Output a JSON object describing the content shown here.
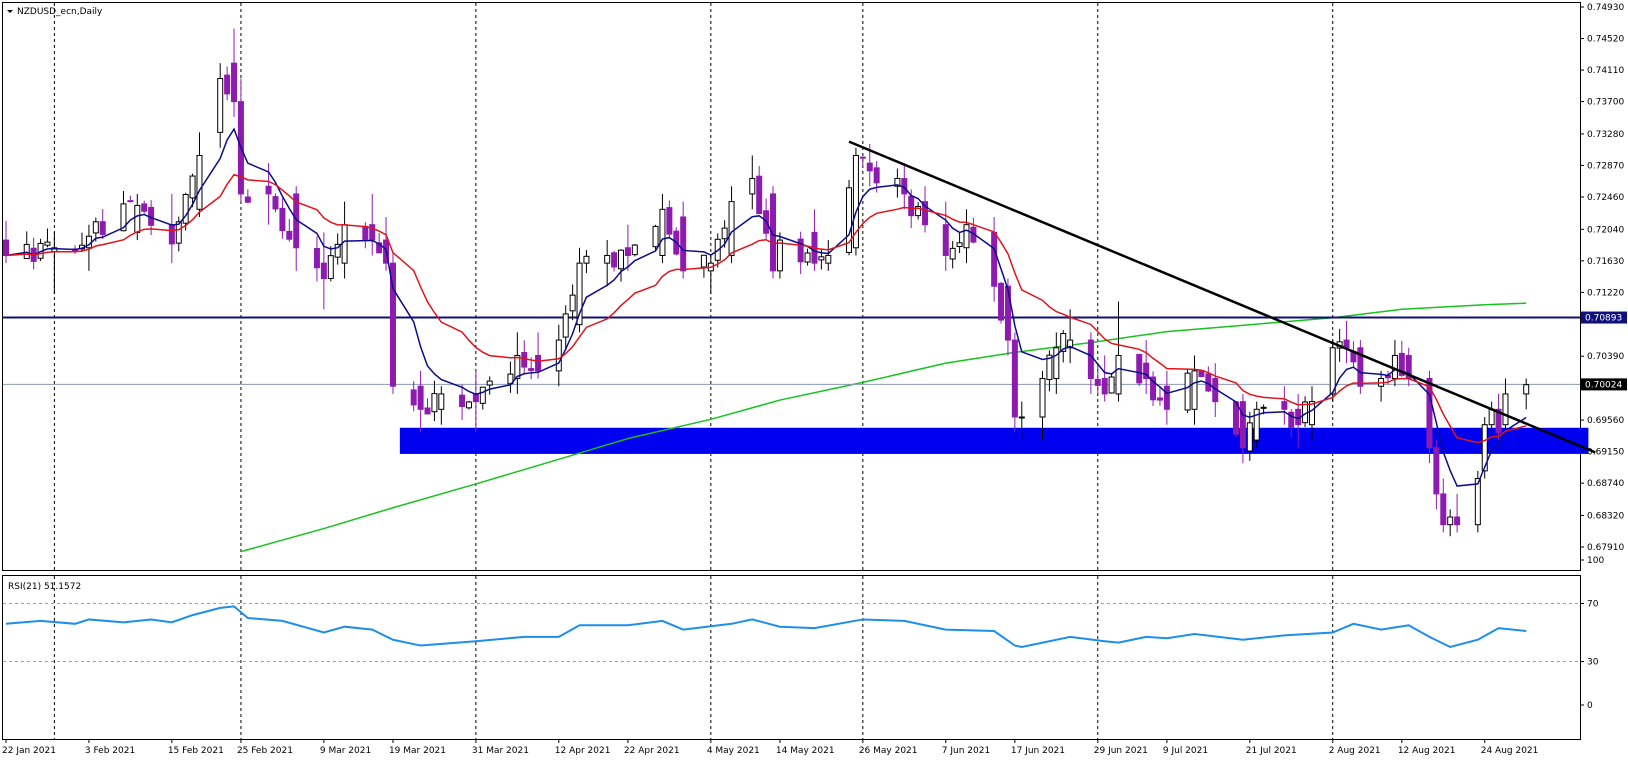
{
  "symbol_label": "NZDUSD_ecn,Daily",
  "indicator_label": "RSI(21) 51.1572",
  "colors": {
    "bull_body": "#ffffff",
    "bear_body": "#8e1bb0",
    "wick": "#000000",
    "ma_fast": "#0b0b8c",
    "ma_mid": "#e0141b",
    "ma_slow": "#19c21e",
    "resistance_line": "#10107a",
    "support_zone": "#0000f0",
    "trendline": "#000000",
    "rsi_line": "#1e8fe8",
    "price_line": "#8c9ab8",
    "grid": "#000000"
  },
  "chart_data": [
    {
      "type": "candlestick",
      "title": "NZDUSD_ecn,Daily",
      "ylim": [
        0.6791,
        0.7493
      ],
      "y_ticks": [
        "0.74930",
        "0.74520",
        "0.74110",
        "0.73700",
        "0.73280",
        "0.72870",
        "0.72460",
        "0.72040",
        "0.71630",
        "0.71220",
        "0.70390",
        "0.69560",
        "0.69150",
        "0.68740",
        "0.68320",
        "0.67910"
      ],
      "x_tick_labels": [
        "22 Jan 2021",
        "3 Feb 2021",
        "15 Feb 2021",
        "25 Feb 2021",
        "9 Mar 2021",
        "19 Mar 2021",
        "31 Mar 2021",
        "12 Apr 2021",
        "22 Apr 2021",
        "4 May 2021",
        "14 May 2021",
        "26 May 2021",
        "7 Jun 2021",
        "17 Jun 2021",
        "29 Jun 2021",
        "9 Jul 2021",
        "21 Jul 2021",
        "2 Aug 2021",
        "12 Aug 2021",
        "24 Aug 2021"
      ],
      "grid": "vertical dashed at tick dates",
      "anchors": [
        {
          "date": "2021-01-22",
          "o": 0.719,
          "h": 0.7215,
          "l": 0.716,
          "c": 0.717
        },
        {
          "date": "2021-01-29",
          "o": 0.7175,
          "h": 0.72,
          "l": 0.712,
          "c": 0.718
        },
        {
          "date": "2021-02-03",
          "o": 0.718,
          "h": 0.721,
          "l": 0.715,
          "c": 0.7195
        },
        {
          "date": "2021-02-10",
          "o": 0.72,
          "h": 0.725,
          "l": 0.719,
          "c": 0.7235
        },
        {
          "date": "2021-02-15",
          "o": 0.721,
          "h": 0.725,
          "l": 0.716,
          "c": 0.7185
        },
        {
          "date": "2021-02-19",
          "o": 0.723,
          "h": 0.733,
          "l": 0.722,
          "c": 0.73
        },
        {
          "date": "2021-02-22",
          "o": 0.733,
          "h": 0.742,
          "l": 0.731,
          "c": 0.74
        },
        {
          "date": "2021-02-24",
          "o": 0.742,
          "h": 0.7465,
          "l": 0.735,
          "c": 0.737
        },
        {
          "date": "2021-02-25",
          "o": 0.737,
          "h": 0.74,
          "l": 0.724,
          "c": 0.725
        },
        {
          "date": "2021-03-01",
          "o": 0.726,
          "h": 0.729,
          "l": 0.721,
          "c": 0.725
        },
        {
          "date": "2021-03-05",
          "o": 0.725,
          "h": 0.726,
          "l": 0.715,
          "c": 0.718
        },
        {
          "date": "2021-03-09",
          "o": 0.716,
          "h": 0.72,
          "l": 0.71,
          "c": 0.714
        },
        {
          "date": "2021-03-12",
          "o": 0.716,
          "h": 0.724,
          "l": 0.714,
          "c": 0.721
        },
        {
          "date": "2021-03-16",
          "o": 0.721,
          "h": 0.725,
          "l": 0.717,
          "c": 0.719
        },
        {
          "date": "2021-03-18",
          "o": 0.719,
          "h": 0.722,
          "l": 0.715,
          "c": 0.716
        },
        {
          "date": "2021-03-19",
          "o": 0.716,
          "h": 0.7175,
          "l": 0.699,
          "c": 0.7
        },
        {
          "date": "2021-03-23",
          "o": 0.7,
          "h": 0.702,
          "l": 0.694,
          "c": 0.697
        },
        {
          "date": "2021-03-26",
          "o": 0.697,
          "h": 0.7,
          "l": 0.695,
          "c": 0.699
        },
        {
          "date": "2021-03-31",
          "o": 0.699,
          "h": 0.702,
          "l": 0.694,
          "c": 0.698
        },
        {
          "date": "2021-04-06",
          "o": 0.701,
          "h": 0.707,
          "l": 0.699,
          "c": 0.704
        },
        {
          "date": "2021-04-09",
          "o": 0.704,
          "h": 0.707,
          "l": 0.701,
          "c": 0.702
        },
        {
          "date": "2021-04-12",
          "o": 0.702,
          "h": 0.708,
          "l": 0.7,
          "c": 0.706
        },
        {
          "date": "2021-04-15",
          "o": 0.708,
          "h": 0.718,
          "l": 0.707,
          "c": 0.716
        },
        {
          "date": "2021-04-19",
          "o": 0.716,
          "h": 0.719,
          "l": 0.713,
          "c": 0.717
        },
        {
          "date": "2021-04-22",
          "o": 0.718,
          "h": 0.721,
          "l": 0.715,
          "c": 0.717
        },
        {
          "date": "2021-04-27",
          "o": 0.717,
          "h": 0.725,
          "l": 0.716,
          "c": 0.723
        },
        {
          "date": "2021-04-30",
          "o": 0.722,
          "h": 0.724,
          "l": 0.714,
          "c": 0.715
        },
        {
          "date": "2021-05-04",
          "o": 0.715,
          "h": 0.717,
          "l": 0.712,
          "c": 0.716
        },
        {
          "date": "2021-05-07",
          "o": 0.717,
          "h": 0.726,
          "l": 0.716,
          "c": 0.724
        },
        {
          "date": "2021-05-10",
          "o": 0.725,
          "h": 0.73,
          "l": 0.723,
          "c": 0.727
        },
        {
          "date": "2021-05-13",
          "o": 0.725,
          "h": 0.726,
          "l": 0.714,
          "c": 0.715
        },
        {
          "date": "2021-05-14",
          "o": 0.715,
          "h": 0.72,
          "l": 0.714,
          "c": 0.719
        },
        {
          "date": "2021-05-19",
          "o": 0.72,
          "h": 0.723,
          "l": 0.715,
          "c": 0.716
        },
        {
          "date": "2021-05-21",
          "o": 0.716,
          "h": 0.719,
          "l": 0.715,
          "c": 0.717
        },
        {
          "date": "2021-05-25",
          "o": 0.718,
          "h": 0.731,
          "l": 0.717,
          "c": 0.73
        },
        {
          "date": "2021-05-27",
          "o": 0.729,
          "h": 0.7315,
          "l": 0.726,
          "c": 0.728
        },
        {
          "date": "2021-06-01",
          "o": 0.727,
          "h": 0.729,
          "l": 0.723,
          "c": 0.725
        },
        {
          "date": "2021-06-04",
          "o": 0.724,
          "h": 0.726,
          "l": 0.72,
          "c": 0.721
        },
        {
          "date": "2021-06-07",
          "o": 0.721,
          "h": 0.724,
          "l": 0.715,
          "c": 0.717
        },
        {
          "date": "2021-06-10",
          "o": 0.718,
          "h": 0.723,
          "l": 0.716,
          "c": 0.721
        },
        {
          "date": "2021-06-14",
          "o": 0.72,
          "h": 0.722,
          "l": 0.711,
          "c": 0.713
        },
        {
          "date": "2021-06-16",
          "o": 0.713,
          "h": 0.714,
          "l": 0.704,
          "c": 0.706
        },
        {
          "date": "2021-06-17",
          "o": 0.706,
          "h": 0.707,
          "l": 0.694,
          "c": 0.696
        },
        {
          "date": "2021-06-18",
          "o": 0.696,
          "h": 0.698,
          "l": 0.693,
          "c": 0.696
        },
        {
          "date": "2021-06-21",
          "o": 0.696,
          "h": 0.702,
          "l": 0.693,
          "c": 0.701
        },
        {
          "date": "2021-06-23",
          "o": 0.701,
          "h": 0.707,
          "l": 0.699,
          "c": 0.705
        },
        {
          "date": "2021-06-25",
          "o": 0.705,
          "h": 0.71,
          "l": 0.703,
          "c": 0.706
        },
        {
          "date": "2021-06-28",
          "o": 0.706,
          "h": 0.707,
          "l": 0.699,
          "c": 0.701
        },
        {
          "date": "2021-06-30",
          "o": 0.701,
          "h": 0.704,
          "l": 0.698,
          "c": 0.699
        },
        {
          "date": "2021-07-02",
          "o": 0.699,
          "h": 0.711,
          "l": 0.698,
          "c": 0.704
        },
        {
          "date": "2021-07-06",
          "o": 0.703,
          "h": 0.706,
          "l": 0.699,
          "c": 0.701
        },
        {
          "date": "2021-07-09",
          "o": 0.7,
          "h": 0.702,
          "l": 0.695,
          "c": 0.697
        },
        {
          "date": "2021-07-13",
          "o": 0.697,
          "h": 0.704,
          "l": 0.695,
          "c": 0.702
        },
        {
          "date": "2021-07-16",
          "o": 0.701,
          "h": 0.703,
          "l": 0.696,
          "c": 0.698
        },
        {
          "date": "2021-07-20",
          "o": 0.698,
          "h": 0.699,
          "l": 0.69,
          "c": 0.692
        },
        {
          "date": "2021-07-22",
          "o": 0.693,
          "h": 0.698,
          "l": 0.692,
          "c": 0.697
        },
        {
          "date": "2021-07-26",
          "o": 0.698,
          "h": 0.7,
          "l": 0.695,
          "c": 0.697
        },
        {
          "date": "2021-07-28",
          "o": 0.697,
          "h": 0.699,
          "l": 0.692,
          "c": 0.695
        },
        {
          "date": "2021-07-30",
          "o": 0.695,
          "h": 0.7,
          "l": 0.693,
          "c": 0.698
        },
        {
          "date": "2021-08-02",
          "o": 0.699,
          "h": 0.706,
          "l": 0.698,
          "c": 0.705
        },
        {
          "date": "2021-08-04",
          "o": 0.706,
          "h": 0.7085,
          "l": 0.703,
          "c": 0.705
        },
        {
          "date": "2021-08-06",
          "o": 0.705,
          "h": 0.706,
          "l": 0.699,
          "c": 0.7
        },
        {
          "date": "2021-08-09",
          "o": 0.7,
          "h": 0.702,
          "l": 0.698,
          "c": 0.701
        },
        {
          "date": "2021-08-11",
          "o": 0.701,
          "h": 0.706,
          "l": 0.7,
          "c": 0.704
        },
        {
          "date": "2021-08-13",
          "o": 0.704,
          "h": 0.705,
          "l": 0.7,
          "c": 0.701
        },
        {
          "date": "2021-08-16",
          "o": 0.701,
          "h": 0.702,
          "l": 0.69,
          "c": 0.692
        },
        {
          "date": "2021-08-17",
          "o": 0.692,
          "h": 0.693,
          "l": 0.684,
          "c": 0.686
        },
        {
          "date": "2021-08-18",
          "o": 0.686,
          "h": 0.688,
          "l": 0.681,
          "c": 0.682
        },
        {
          "date": "2021-08-19",
          "o": 0.682,
          "h": 0.684,
          "l": 0.6805,
          "c": 0.683
        },
        {
          "date": "2021-08-20",
          "o": 0.683,
          "h": 0.686,
          "l": 0.681,
          "c": 0.682
        },
        {
          "date": "2021-08-23",
          "o": 0.682,
          "h": 0.689,
          "l": 0.681,
          "c": 0.688
        },
        {
          "date": "2021-08-24",
          "o": 0.689,
          "h": 0.696,
          "l": 0.688,
          "c": 0.695
        },
        {
          "date": "2021-08-25",
          "o": 0.695,
          "h": 0.698,
          "l": 0.693,
          "c": 0.697
        },
        {
          "date": "2021-08-26",
          "o": 0.697,
          "h": 0.699,
          "l": 0.693,
          "c": 0.694
        },
        {
          "date": "2021-08-27",
          "o": 0.695,
          "h": 0.701,
          "l": 0.694,
          "c": 0.699
        },
        {
          "date": "2021-08-30",
          "o": 0.699,
          "h": 0.701,
          "l": 0.697,
          "c": 0.7002
        }
      ],
      "ma_slow": [
        {
          "date": "2021-02-25",
          "v": 0.6785
        },
        {
          "date": "2021-03-09",
          "v": 0.6815
        },
        {
          "date": "2021-03-19",
          "v": 0.6842
        },
        {
          "date": "2021-03-31",
          "v": 0.6873
        },
        {
          "date": "2021-04-12",
          "v": 0.6905
        },
        {
          "date": "2021-04-22",
          "v": 0.6932
        },
        {
          "date": "2021-05-04",
          "v": 0.6957
        },
        {
          "date": "2021-05-14",
          "v": 0.6982
        },
        {
          "date": "2021-05-26",
          "v": 0.7005
        },
        {
          "date": "2021-06-07",
          "v": 0.703
        },
        {
          "date": "2021-06-17",
          "v": 0.7044
        },
        {
          "date": "2021-06-29",
          "v": 0.7058
        },
        {
          "date": "2021-07-09",
          "v": 0.7071
        },
        {
          "date": "2021-07-21",
          "v": 0.708
        },
        {
          "date": "2021-08-02",
          "v": 0.7089
        },
        {
          "date": "2021-08-12",
          "v": 0.71
        },
        {
          "date": "2021-08-24",
          "v": 0.7106
        },
        {
          "date": "2021-08-30",
          "v": 0.7108
        }
      ],
      "resistance_level": 0.70893,
      "current_price": 0.70024,
      "support_zone": {
        "from_date": "2021-03-20",
        "to_date": "2021-09-08",
        "low": 0.6912,
        "high": 0.6946
      },
      "trendline": {
        "start": {
          "date": "2021-05-24",
          "price": 0.7318
        },
        "end": {
          "date": "2021-09-09",
          "price": 0.6914
        }
      },
      "price_label": "0.70024",
      "level_label": "0.70893"
    },
    {
      "type": "line",
      "title": "RSI(21) 51.1572",
      "ylim": [
        0,
        100
      ],
      "y_ticks": [
        "100",
        "70",
        "30",
        "0"
      ],
      "levels": [
        70,
        30
      ],
      "values": [
        {
          "date": "2021-01-22",
          "v": 56
        },
        {
          "date": "2021-01-27",
          "v": 58
        },
        {
          "date": "2021-02-01",
          "v": 56
        },
        {
          "date": "2021-02-03",
          "v": 59
        },
        {
          "date": "2021-02-08",
          "v": 57
        },
        {
          "date": "2021-02-12",
          "v": 59
        },
        {
          "date": "2021-02-15",
          "v": 57
        },
        {
          "date": "2021-02-18",
          "v": 62
        },
        {
          "date": "2021-02-22",
          "v": 67
        },
        {
          "date": "2021-02-24",
          "v": 68
        },
        {
          "date": "2021-02-26",
          "v": 60
        },
        {
          "date": "2021-03-03",
          "v": 58
        },
        {
          "date": "2021-03-09",
          "v": 50
        },
        {
          "date": "2021-03-12",
          "v": 54
        },
        {
          "date": "2021-03-16",
          "v": 52
        },
        {
          "date": "2021-03-19",
          "v": 45
        },
        {
          "date": "2021-03-23",
          "v": 41
        },
        {
          "date": "2021-03-31",
          "v": 44
        },
        {
          "date": "2021-04-07",
          "v": 47
        },
        {
          "date": "2021-04-12",
          "v": 47
        },
        {
          "date": "2021-04-15",
          "v": 55
        },
        {
          "date": "2021-04-22",
          "v": 55
        },
        {
          "date": "2021-04-27",
          "v": 58
        },
        {
          "date": "2021-04-30",
          "v": 52
        },
        {
          "date": "2021-05-07",
          "v": 56
        },
        {
          "date": "2021-05-10",
          "v": 59
        },
        {
          "date": "2021-05-14",
          "v": 54
        },
        {
          "date": "2021-05-19",
          "v": 53
        },
        {
          "date": "2021-05-26",
          "v": 59
        },
        {
          "date": "2021-06-01",
          "v": 58
        },
        {
          "date": "2021-06-07",
          "v": 52
        },
        {
          "date": "2021-06-14",
          "v": 51
        },
        {
          "date": "2021-06-17",
          "v": 41
        },
        {
          "date": "2021-06-18",
          "v": 40
        },
        {
          "date": "2021-06-25",
          "v": 47
        },
        {
          "date": "2021-06-30",
          "v": 44
        },
        {
          "date": "2021-07-02",
          "v": 43
        },
        {
          "date": "2021-07-06",
          "v": 47
        },
        {
          "date": "2021-07-09",
          "v": 46
        },
        {
          "date": "2021-07-13",
          "v": 49
        },
        {
          "date": "2021-07-20",
          "v": 45
        },
        {
          "date": "2021-07-26",
          "v": 48
        },
        {
          "date": "2021-08-02",
          "v": 50
        },
        {
          "date": "2021-08-05",
          "v": 56
        },
        {
          "date": "2021-08-09",
          "v": 52
        },
        {
          "date": "2021-08-13",
          "v": 55
        },
        {
          "date": "2021-08-16",
          "v": 47
        },
        {
          "date": "2021-08-19",
          "v": 40
        },
        {
          "date": "2021-08-23",
          "v": 45
        },
        {
          "date": "2021-08-26",
          "v": 53
        },
        {
          "date": "2021-08-30",
          "v": 51
        }
      ]
    }
  ]
}
